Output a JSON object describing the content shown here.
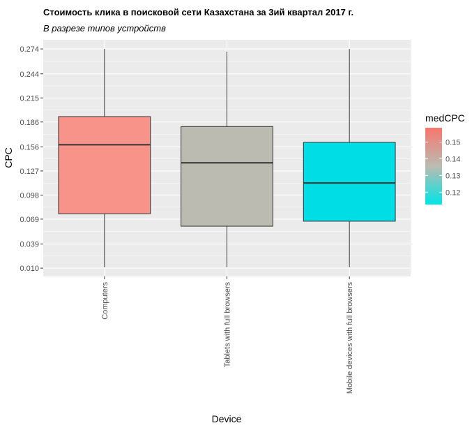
{
  "chart_data": {
    "type": "boxplot",
    "title": "Стоимость клика в поисковой сети Казахстана за 3ий квартал 2017 г.",
    "subtitle": "В разрезе типов устройств",
    "xlabel": "Device",
    "ylabel": "CPC",
    "ylim": [
      0.0,
      0.285
    ],
    "yticks": [
      "0.010",
      "0.039",
      "0.069",
      "0.098",
      "0.127",
      "0.156",
      "0.186",
      "0.215",
      "0.244",
      "0.274"
    ],
    "grid": true,
    "categories": [
      "Computers",
      "Tablets with full browsers",
      "Mobile devices with full browsers"
    ],
    "boxes": [
      {
        "category": "Computers",
        "min": 0.011,
        "q1": 0.0755,
        "median": 0.1586,
        "q3": 0.1925,
        "max": 0.274,
        "medCPC": 0.1586,
        "fill": "#F8938A"
      },
      {
        "category": "Tablets with full browsers",
        "min": 0.011,
        "q1": 0.0605,
        "median": 0.1368,
        "q3": 0.1805,
        "max": 0.2708,
        "medCPC": 0.1368,
        "fill": "#BBBBB1"
      },
      {
        "category": "Mobile devices with full browsers",
        "min": 0.011,
        "q1": 0.0665,
        "median": 0.1126,
        "q3": 0.1615,
        "max": 0.274,
        "medCPC": 0.1126,
        "fill": "#00DDE5"
      }
    ],
    "legend": {
      "title": "medCPC",
      "position": "right",
      "ticks": [
        "0.15",
        "0.14",
        "0.13",
        "0.12"
      ],
      "tick_values": [
        0.15,
        0.14,
        0.13,
        0.12
      ],
      "range": [
        0.1126,
        0.1586
      ],
      "color_high": "#F8766D",
      "color_mid": "#BBBBB1",
      "color_low": "#00E5E5"
    }
  }
}
